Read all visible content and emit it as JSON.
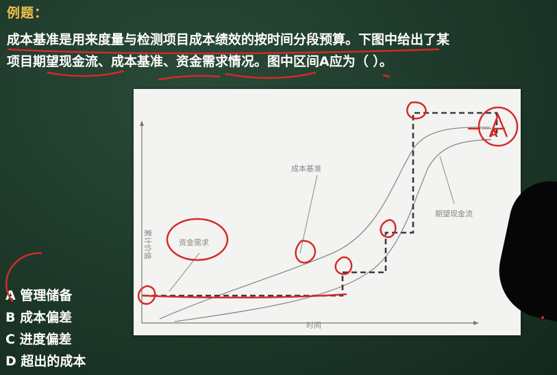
{
  "heading": "例题：",
  "question": {
    "line1": "成本基准是用来度量与检测项目成本绩效的按时间分段预算。下图中给出了某",
    "line2": "项目期望现金流、成本基准、资金需求情况。图中区间A应为（    ）。"
  },
  "figure": {
    "y_axis_label": "累计价值",
    "x_axis_label": "时间",
    "curve_labels": {
      "cost_baseline": "成本基准",
      "expected_cash_flow": "期望现金流",
      "funding_requirement": "资金需求"
    },
    "region_label": "A"
  },
  "options": [
    {
      "letter": "A",
      "text": "管理储备"
    },
    {
      "letter": "B",
      "text": "成本偏差"
    },
    {
      "letter": "C",
      "text": "进度偏差"
    },
    {
      "letter": "D",
      "text": "超出的成本"
    }
  ],
  "colors": {
    "heading": "#f2c24c",
    "annotation": "#d42a2a",
    "background": "#1f3b2c"
  }
}
